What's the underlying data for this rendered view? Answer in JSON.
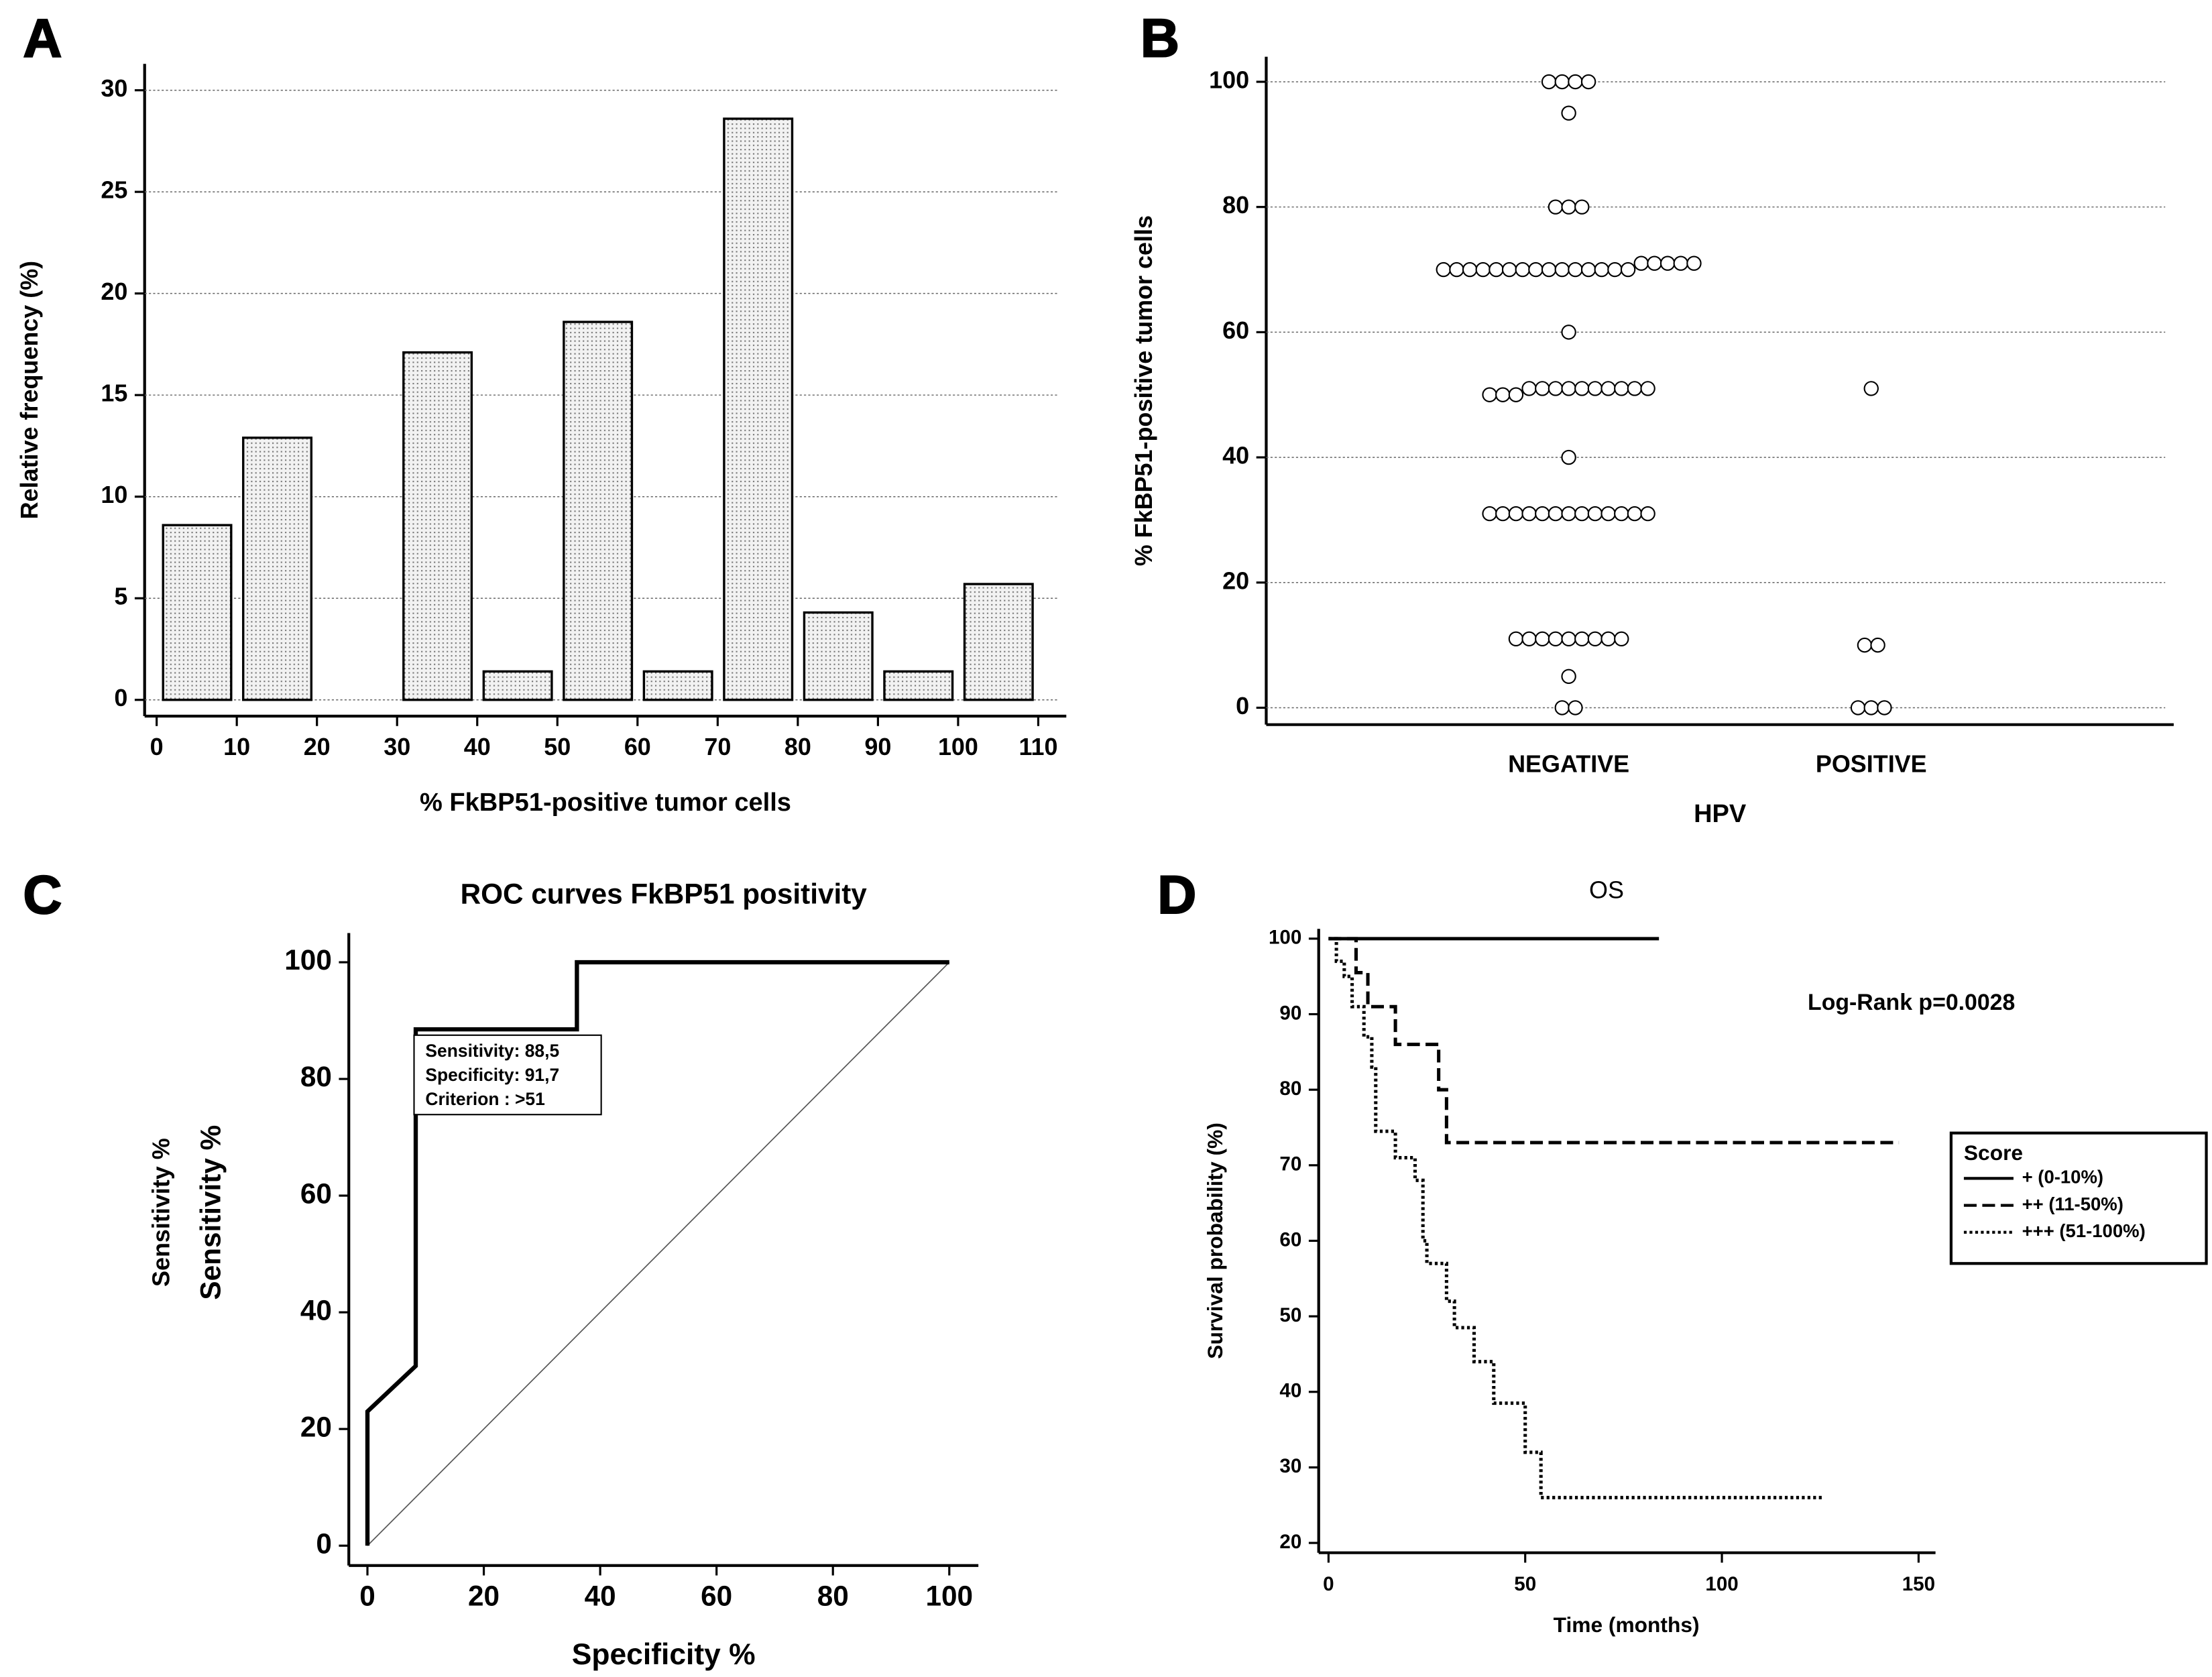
{
  "chart_data": [
    {
      "type": "histogram",
      "panel": "A",
      "xlabel": "% FkBP51-positive tumor cells",
      "ylabel": "Relative frequency (%)",
      "bins": [
        0,
        10,
        20,
        30,
        40,
        50,
        60,
        70,
        80,
        90,
        100,
        110
      ],
      "values": [
        8.6,
        12.9,
        0,
        17.1,
        1.4,
        18.6,
        1.4,
        28.6,
        4.3,
        1.4,
        5.7
      ],
      "color": "#e8e8e8",
      "xlim": [
        -1.5,
        113.5
      ],
      "ylim": [
        -0.8,
        31.3
      ],
      "xticks": [
        0,
        10,
        20,
        30,
        40,
        50,
        60,
        70,
        80,
        90,
        100,
        110
      ],
      "yticks": [
        0,
        5,
        10,
        15,
        20,
        25,
        30
      ],
      "grid": true
    },
    {
      "type": "strip",
      "panel": "B",
      "xlabel": "HPV",
      "ylabel": "% FkBP51-positive tumor cells",
      "categories": [
        "NEGATIVE",
        "POSITIVE"
      ],
      "values": [
        [
          100,
          100,
          100,
          100,
          95,
          80,
          80,
          80,
          70,
          70,
          70,
          70,
          70,
          70,
          70,
          70,
          70,
          70,
          70,
          70,
          70,
          70,
          70,
          71,
          71,
          71,
          71,
          71,
          60,
          50,
          50,
          50,
          51,
          51,
          51,
          51,
          51,
          51,
          51,
          51,
          51,
          51,
          40,
          31,
          31,
          31,
          31,
          31,
          31,
          31,
          31,
          31,
          31,
          31,
          31,
          31,
          11,
          11,
          11,
          11,
          11,
          11,
          11,
          11,
          11,
          5,
          0,
          0
        ],
        [
          51,
          10,
          10,
          0,
          0,
          0
        ]
      ],
      "ylim": [
        -2.7,
        104
      ],
      "yticks": [
        0,
        20,
        40,
        60,
        80,
        100
      ],
      "grid": true
    },
    {
      "type": "line",
      "panel": "C",
      "title": "ROC curves FkBP51 positivity",
      "xlabel": "Specificity %",
      "ylabels": [
        "Sensitivity %",
        "Sensitivity %"
      ],
      "x": [
        0,
        0,
        8.3,
        8.3,
        36,
        36,
        100
      ],
      "y": [
        0,
        23,
        30.8,
        88.5,
        88.5,
        100,
        100
      ],
      "annotations": [
        "Sensitivity: 88,5",
        "Specificity: 91,7",
        "Criterion : >51"
      ],
      "xlim": [
        -3.2,
        105
      ],
      "ylim": [
        -3.4,
        105
      ],
      "xticks": [
        0,
        20,
        40,
        60,
        80,
        100
      ],
      "yticks": [
        0,
        20,
        40,
        60,
        80,
        100
      ]
    },
    {
      "type": "line",
      "panel": "D",
      "title": "OS",
      "xlabel": "Time (months)",
      "ylabel": "Survival probability (%)",
      "annotation": "Log-Rank p=0.0028",
      "legend_title": "Score",
      "legend": "right",
      "series": [
        {
          "name": "+ (0-10%)",
          "color": "#000000",
          "dash": "solid",
          "x": [
            0,
            84
          ],
          "y": [
            100,
            100
          ]
        },
        {
          "name": "++ (11-50%)",
          "color": "#000000",
          "dash": "dashed",
          "x": [
            0,
            7,
            7,
            10,
            10,
            17,
            17,
            28,
            28,
            30,
            30,
            145
          ],
          "y": [
            100,
            100,
            95.5,
            95.5,
            91,
            91,
            86,
            86,
            80,
            80,
            73,
            73
          ]
        },
        {
          "name": "+++ (51-100%)",
          "color": "#000000",
          "dash": "dotted",
          "x": [
            0,
            2,
            2,
            4,
            4,
            6,
            6,
            9,
            9,
            11,
            11,
            12,
            12,
            17,
            17,
            22,
            22,
            24,
            24,
            25,
            25,
            30,
            30,
            32,
            32,
            37,
            37,
            42,
            42,
            50,
            50,
            54,
            54,
            126
          ],
          "y": [
            100,
            100,
            97,
            97,
            95,
            95,
            91,
            91,
            87,
            87,
            83,
            83,
            74.5,
            74.5,
            71,
            71,
            68,
            68,
            60,
            60,
            57,
            57,
            52,
            52,
            48.5,
            48.5,
            44,
            44,
            38.5,
            38.5,
            32,
            32,
            26,
            26
          ]
        }
      ],
      "xlim": [
        -2.5,
        154.3
      ],
      "ylim": [
        18.7,
        101.3
      ],
      "xticks": [
        0,
        50,
        100,
        150
      ],
      "yticks": [
        20,
        30,
        40,
        50,
        60,
        70,
        80,
        90,
        100
      ]
    }
  ]
}
